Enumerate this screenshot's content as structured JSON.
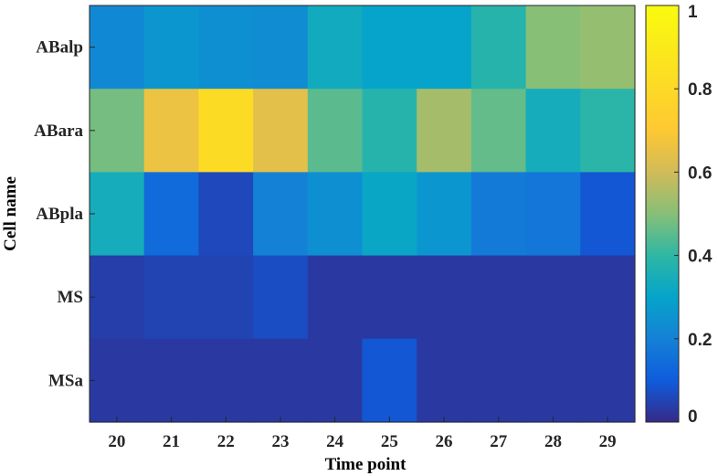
{
  "chart_data": {
    "type": "heatmap",
    "xlabel": "Time point",
    "ylabel": "Cell name",
    "x_categories": [
      "20",
      "21",
      "22",
      "23",
      "24",
      "25",
      "26",
      "27",
      "28",
      "29"
    ],
    "y_categories": [
      "ABalp",
      "ABara",
      "ABpla",
      "MS",
      "MSa"
    ],
    "values": [
      [
        0.22,
        0.26,
        0.24,
        0.23,
        0.33,
        0.3,
        0.3,
        0.38,
        0.5,
        0.52
      ],
      [
        0.48,
        0.66,
        0.81,
        0.64,
        0.45,
        0.38,
        0.54,
        0.46,
        0.34,
        0.39
      ],
      [
        0.34,
        0.14,
        0.06,
        0.2,
        0.24,
        0.31,
        0.26,
        0.18,
        0.17,
        0.09
      ],
      [
        0.04,
        0.05,
        0.05,
        0.07,
        0.03,
        0.03,
        0.03,
        0.03,
        0.03,
        0.03
      ],
      [
        0.03,
        0.03,
        0.03,
        0.03,
        0.03,
        0.09,
        0.03,
        0.03,
        0.03,
        0.03
      ]
    ],
    "colormap": "parula",
    "clim": [
      0,
      1
    ],
    "colorbar": {
      "ticks": [
        "0",
        "0.2",
        "0.4",
        "0.6",
        "0.8",
        "1"
      ],
      "tick_values": [
        0,
        0.2,
        0.4,
        0.6,
        0.8,
        1
      ]
    },
    "grid": false,
    "colorbar_placement": "right"
  }
}
